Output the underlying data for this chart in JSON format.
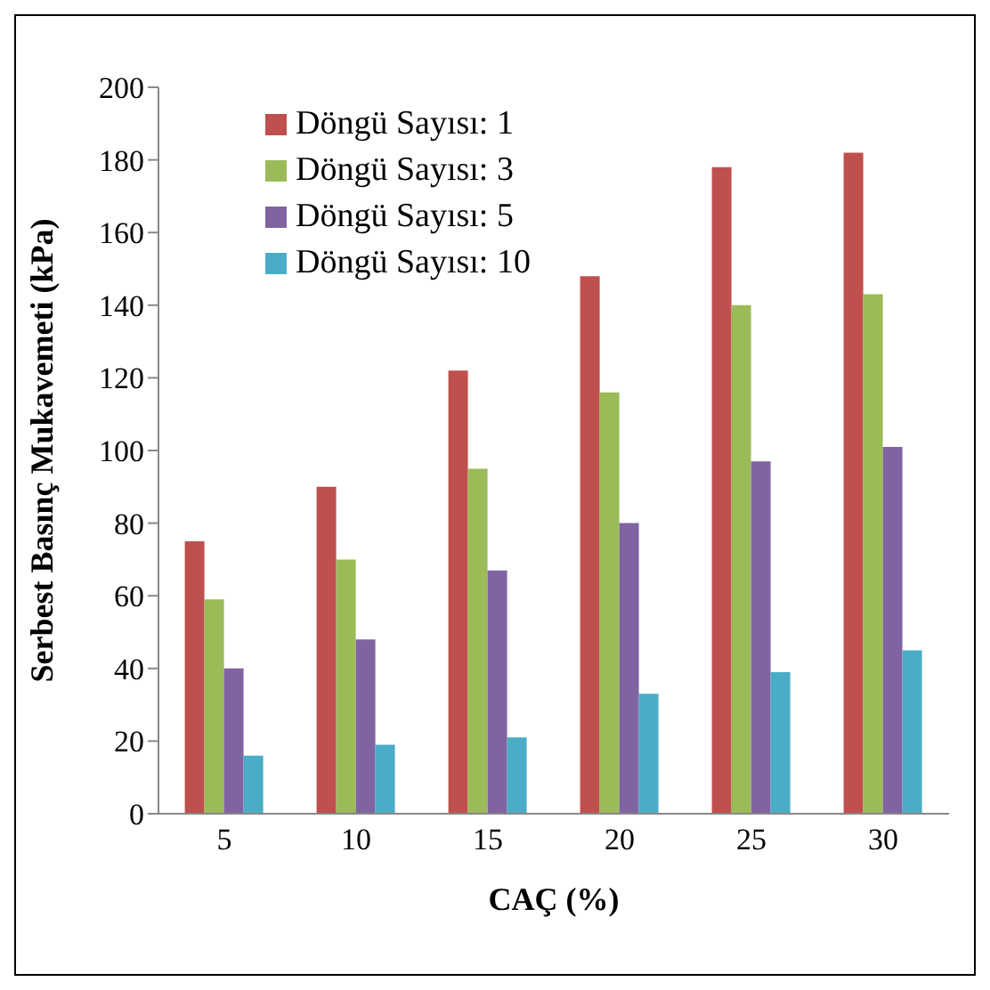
{
  "chart_data": {
    "type": "bar",
    "xlabel": "CAÇ (%)",
    "ylabel": "Serbest Basınç Mukavemeti (kPa)",
    "categories": [
      "5",
      "10",
      "15",
      "20",
      "25",
      "30"
    ],
    "series": [
      {
        "name": "Döngü Sayısı: 1",
        "color": "#c0504d",
        "values": [
          75,
          90,
          122,
          148,
          178,
          182
        ]
      },
      {
        "name": "Döngü Sayısı: 3",
        "color": "#9bbb59",
        "values": [
          59,
          70,
          95,
          116,
          140,
          143
        ]
      },
      {
        "name": "Döngü Sayısı: 5",
        "color": "#8064a2",
        "values": [
          40,
          48,
          67,
          80,
          97,
          101
        ]
      },
      {
        "name": "Döngü Sayısı: 10",
        "color": "#4bacc6",
        "values": [
          16,
          19,
          21,
          33,
          39,
          45
        ]
      }
    ],
    "ylim": [
      0,
      200
    ],
    "yticks": [
      0,
      20,
      40,
      60,
      80,
      100,
      120,
      140,
      160,
      180,
      200
    ],
    "grid": false,
    "legend": "top left"
  }
}
